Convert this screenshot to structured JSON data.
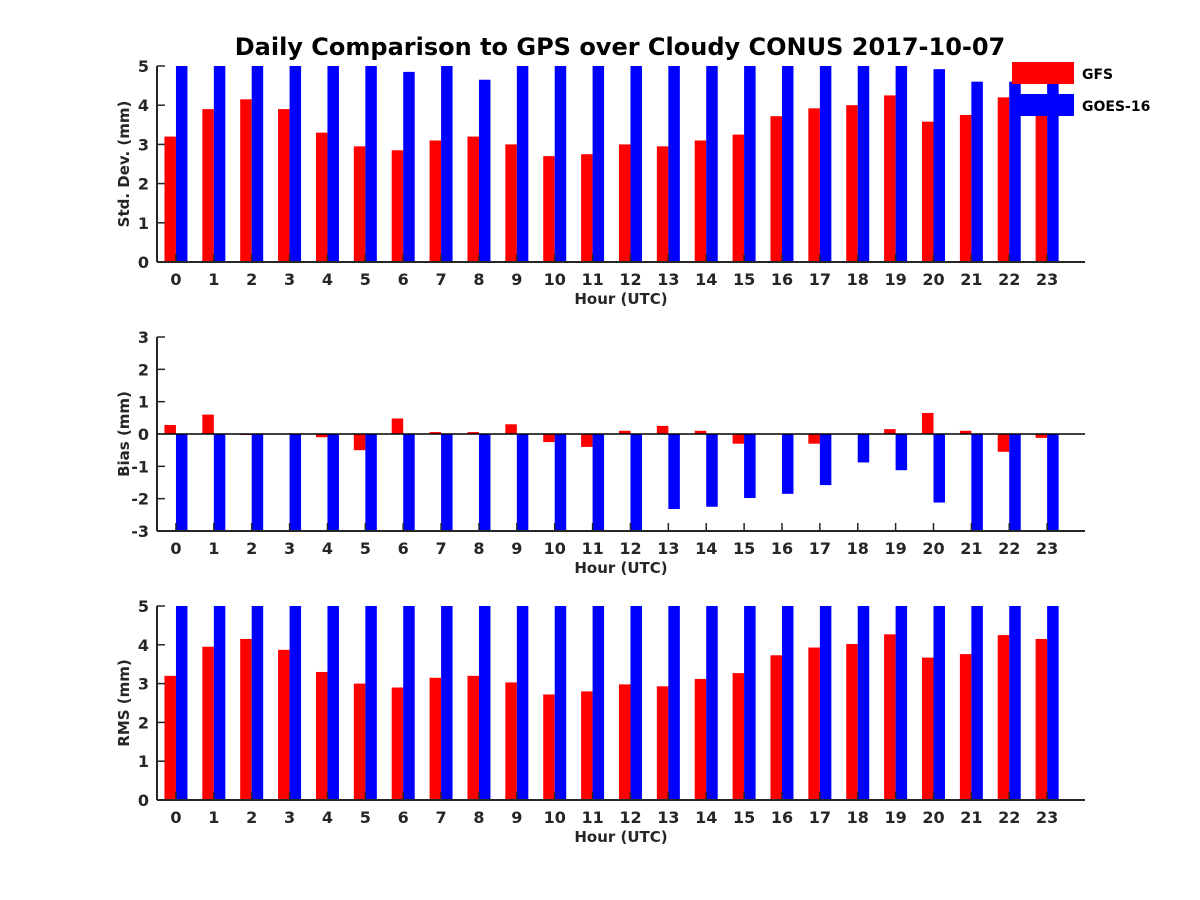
{
  "title": "Daily Comparison to GPS over Cloudy CONUS 2017-10-07",
  "colors": {
    "GFS": "#ff0000",
    "GOES-16": "#0000ff",
    "axis": "#262626"
  },
  "legend": {
    "placement": "top-right",
    "items": [
      "GFS",
      "GOES-16"
    ]
  },
  "chart_data": [
    {
      "type": "bar",
      "xlabel": "Hour (UTC)",
      "ylabel": "Std. Dev. (mm)",
      "ylim": [
        0,
        5
      ],
      "yticks": [
        0,
        1,
        2,
        3,
        4,
        5
      ],
      "categories": [
        "0",
        "1",
        "2",
        "3",
        "4",
        "5",
        "6",
        "7",
        "8",
        "9",
        "10",
        "11",
        "12",
        "13",
        "14",
        "15",
        "16",
        "17",
        "18",
        "19",
        "20",
        "21",
        "22",
        "23"
      ],
      "series": [
        {
          "name": "GFS",
          "values": [
            3.2,
            3.9,
            4.15,
            3.9,
            3.3,
            2.95,
            2.85,
            3.1,
            3.2,
            3.0,
            2.7,
            2.75,
            3.0,
            2.95,
            3.1,
            3.25,
            3.72,
            3.92,
            4.0,
            4.25,
            3.58,
            3.75,
            4.2,
            4.1
          ]
        },
        {
          "name": "GOES-16",
          "values": [
            5,
            5,
            5,
            5,
            5,
            5,
            4.85,
            5,
            4.65,
            5,
            5,
            5,
            5,
            5,
            5,
            5,
            5,
            5,
            5,
            5,
            4.92,
            4.6,
            4.6,
            4.6
          ]
        }
      ]
    },
    {
      "type": "bar",
      "xlabel": "Hour (UTC)",
      "ylabel": "Bias (mm)",
      "ylim": [
        -3,
        3
      ],
      "yticks": [
        -3,
        -2,
        -1,
        0,
        1,
        2,
        3
      ],
      "categories": [
        "0",
        "1",
        "2",
        "3",
        "4",
        "5",
        "6",
        "7",
        "8",
        "9",
        "10",
        "11",
        "12",
        "13",
        "14",
        "15",
        "16",
        "17",
        "18",
        "19",
        "20",
        "21",
        "22",
        "23"
      ],
      "series": [
        {
          "name": "GFS",
          "values": [
            0.28,
            0.6,
            -0.03,
            0,
            -0.1,
            -0.5,
            0.48,
            0.06,
            0.06,
            0.3,
            -0.25,
            -0.4,
            0.1,
            0.25,
            0.1,
            -0.3,
            0,
            -0.3,
            0,
            0.15,
            0.65,
            0.1,
            -0.55,
            -0.12
          ]
        },
        {
          "name": "GOES-16",
          "values": [
            -3,
            -3,
            -3,
            -3,
            -3,
            -3,
            -3,
            -3,
            -3,
            -3,
            -3,
            -3,
            -3,
            -2.32,
            -2.25,
            -1.98,
            -1.85,
            -1.58,
            -0.88,
            -1.12,
            -2.12,
            -3,
            -3,
            -3
          ]
        }
      ]
    },
    {
      "type": "bar",
      "xlabel": "Hour (UTC)",
      "ylabel": "RMS (mm)",
      "ylim": [
        0,
        5
      ],
      "yticks": [
        0,
        1,
        2,
        3,
        4,
        5
      ],
      "categories": [
        "0",
        "1",
        "2",
        "3",
        "4",
        "5",
        "6",
        "7",
        "8",
        "9",
        "10",
        "11",
        "12",
        "13",
        "14",
        "15",
        "16",
        "17",
        "18",
        "19",
        "20",
        "21",
        "22",
        "23"
      ],
      "series": [
        {
          "name": "GFS",
          "values": [
            3.2,
            3.95,
            4.15,
            3.87,
            3.3,
            3.0,
            2.9,
            3.15,
            3.2,
            3.03,
            2.72,
            2.8,
            2.98,
            2.93,
            3.12,
            3.27,
            3.73,
            3.93,
            4.02,
            4.27,
            3.67,
            3.76,
            4.25,
            4.15
          ]
        },
        {
          "name": "GOES-16",
          "values": [
            5,
            5,
            5,
            5,
            5,
            5,
            5,
            5,
            5,
            5,
            5,
            5,
            5,
            5,
            5,
            5,
            5,
            5,
            5,
            5,
            5,
            5,
            5,
            5
          ]
        }
      ]
    }
  ]
}
